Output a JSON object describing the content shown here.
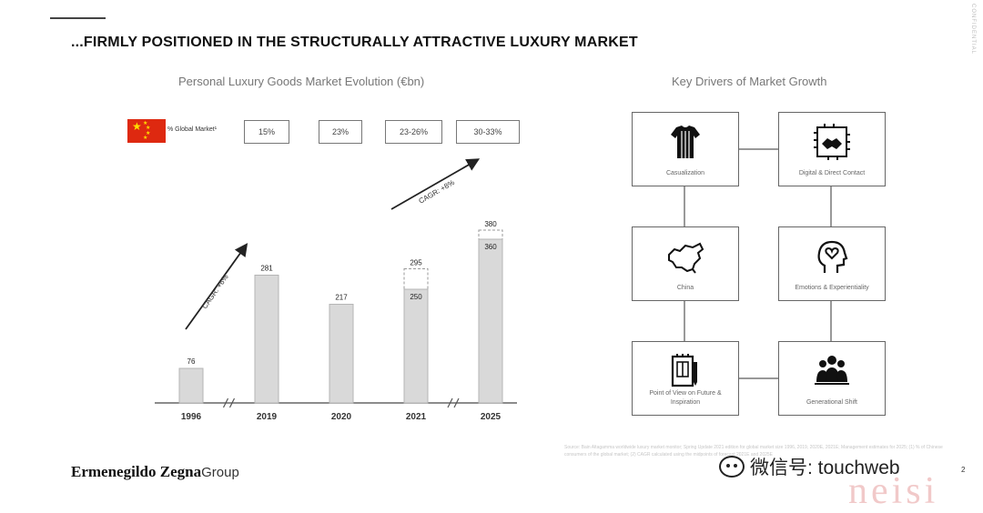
{
  "slide": {
    "title": "...FIRMLY POSITIONED IN THE STRUCTURALLY ATTRACTIVE LUXURY MARKET",
    "confidential": "CONFIDENTIAL",
    "page_number": "2"
  },
  "left": {
    "subtitle": "Personal Luxury Goods Market Evolution (€bn)",
    "global_market_label": "% Global Market¹",
    "shares": [
      "15%",
      "23%",
      "23-26%",
      "30-33%"
    ]
  },
  "right": {
    "subtitle": "Key Drivers of Market Growth",
    "drivers": [
      {
        "label": "Casualization",
        "icon": "tshirt-icon"
      },
      {
        "label": "Digital & Direct Contact",
        "icon": "digital-handshake-icon"
      },
      {
        "label": "China",
        "icon": "china-map-icon"
      },
      {
        "label": "Emotions & Experientiality",
        "icon": "head-heart-icon"
      },
      {
        "label": "Point of View on Future & Inspiration",
        "icon": "pen-notebook-icon"
      },
      {
        "label": "Generational Shift",
        "icon": "people-group-icon"
      }
    ]
  },
  "chart_data": {
    "type": "bar",
    "categories": [
      "1996",
      "2019",
      "2020",
      "2021",
      "2025"
    ],
    "values": [
      76,
      281,
      217,
      250,
      360
    ],
    "dashed_extension": [
      null,
      null,
      null,
      295,
      380
    ],
    "data_labels_dashed": [
      "",
      "",
      "",
      "295",
      "380"
    ],
    "data_labels": [
      "76",
      "281",
      "217",
      "250",
      "360"
    ],
    "annotations": [
      "CAGR: +6%",
      "CAGR: +8%"
    ],
    "axis_breaks_after": [
      "1996",
      "2021"
    ],
    "ylim": [
      0,
      400
    ],
    "colors": {
      "bar": "#d9d9d9",
      "bar_stroke": "#b5b5b5",
      "arrow": "#222222"
    }
  },
  "footer": {
    "source": "Source: Bain Altagamma worldwide luxury market monitor; Spring Update 2021 edition for global market size 1996, 2019, 2020E, 2021E; Management estimates for 2025; (1) % of Chinese consumers of the global market; (2) CAGR calculated using the midpoints of forecast 2021E and 2025E",
    "logo_name": "Ermenegildo Zegna",
    "logo_group": "Group",
    "watermark": "微信号: touchweb",
    "watermark2": "neisi"
  }
}
